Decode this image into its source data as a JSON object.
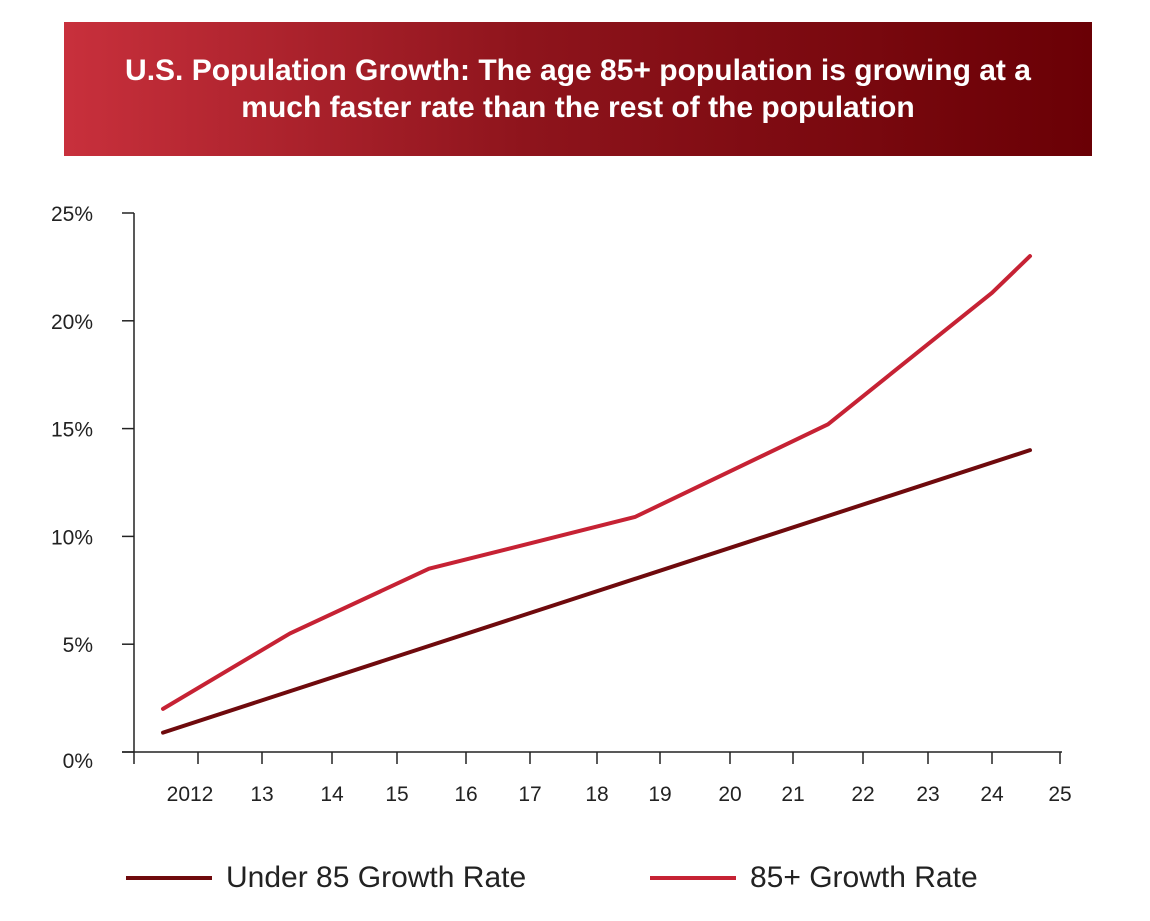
{
  "title": "U.S. Population Growth: The age 85+ population is growing at a much faster rate than the rest of the population",
  "colors": {
    "under85": "#6f0a0d",
    "over85": "#c62234",
    "axis": "#222222"
  },
  "legend": [
    {
      "label": "Under 85 Growth Rate",
      "color": "#6f0a0d"
    },
    {
      "label": "85+ Growth Rate",
      "color": "#c62234"
    }
  ],
  "chart_data": {
    "type": "line",
    "title": "U.S. Population Growth: The age 85+ population is growing at a much faster rate than the rest of the population",
    "xlabel": "",
    "ylabel": "",
    "x_tick_labels": [
      "2012",
      "13",
      "14",
      "15",
      "16",
      "17",
      "18",
      "19",
      "20",
      "21",
      "22",
      "23",
      "24",
      "25"
    ],
    "y_tick_labels": [
      "0%",
      "5%",
      "10%",
      "15%",
      "20%",
      "25%"
    ],
    "ylim": [
      0,
      25
    ],
    "grid": false,
    "legend_position": "bottom",
    "series": [
      {
        "name": "Under 85 Growth Rate",
        "color": "#6f0a0d",
        "points": [
          {
            "x": "2012",
            "y": 0.9
          },
          {
            "x": "25",
            "y": 14.0
          }
        ]
      },
      {
        "name": "85+ Growth Rate",
        "color": "#c62234",
        "points": [
          {
            "x": "2012",
            "y": 2.0
          },
          {
            "x": "13",
            "y": 5.5
          },
          {
            "x": "15",
            "y": 8.5
          },
          {
            "x": "19",
            "y": 10.9
          },
          {
            "x": "22",
            "y": 15.2
          },
          {
            "x": "24",
            "y": 21.3
          },
          {
            "x": "25",
            "y": 23.0
          }
        ]
      }
    ]
  }
}
